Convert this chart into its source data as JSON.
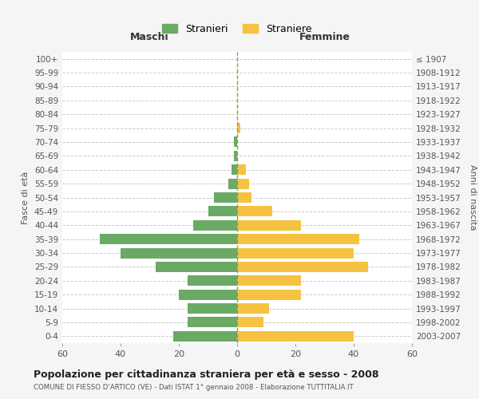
{
  "age_groups": [
    "0-4",
    "5-9",
    "10-14",
    "15-19",
    "20-24",
    "25-29",
    "30-34",
    "35-39",
    "40-44",
    "45-49",
    "50-54",
    "55-59",
    "60-64",
    "65-69",
    "70-74",
    "75-79",
    "80-84",
    "85-89",
    "90-94",
    "95-99",
    "100+"
  ],
  "birth_years": [
    "2003-2007",
    "1998-2002",
    "1993-1997",
    "1988-1992",
    "1983-1987",
    "1978-1982",
    "1973-1977",
    "1968-1972",
    "1963-1967",
    "1958-1962",
    "1953-1957",
    "1948-1952",
    "1943-1947",
    "1938-1942",
    "1933-1937",
    "1928-1932",
    "1923-1927",
    "1918-1922",
    "1913-1917",
    "1908-1912",
    "≤ 1907"
  ],
  "males": [
    22,
    17,
    17,
    20,
    17,
    28,
    40,
    47,
    15,
    10,
    8,
    3,
    2,
    1,
    1,
    0,
    0,
    0,
    0,
    0,
    0
  ],
  "females": [
    40,
    9,
    11,
    22,
    22,
    45,
    40,
    42,
    22,
    12,
    5,
    4,
    3,
    0,
    0,
    1,
    0,
    0,
    0,
    0,
    0
  ],
  "male_color": "#6aaa64",
  "female_color": "#f5c242",
  "background_color": "#f5f5f5",
  "plot_bg_color": "#ffffff",
  "grid_color": "#cccccc",
  "title": "Popolazione per cittadinanza straniera per età e sesso - 2008",
  "subtitle": "COMUNE DI FIESSO D'ARTICO (VE) - Dati ISTAT 1° gennaio 2008 - Elaborazione TUTTITALIA.IT",
  "xlabel_left": "Maschi",
  "xlabel_right": "Femmine",
  "ylabel_left": "Fasce di età",
  "ylabel_right": "Anni di nascita",
  "legend_male": "Stranieri",
  "legend_female": "Straniere",
  "xlim": 60,
  "dashed_line_color": "#999944"
}
